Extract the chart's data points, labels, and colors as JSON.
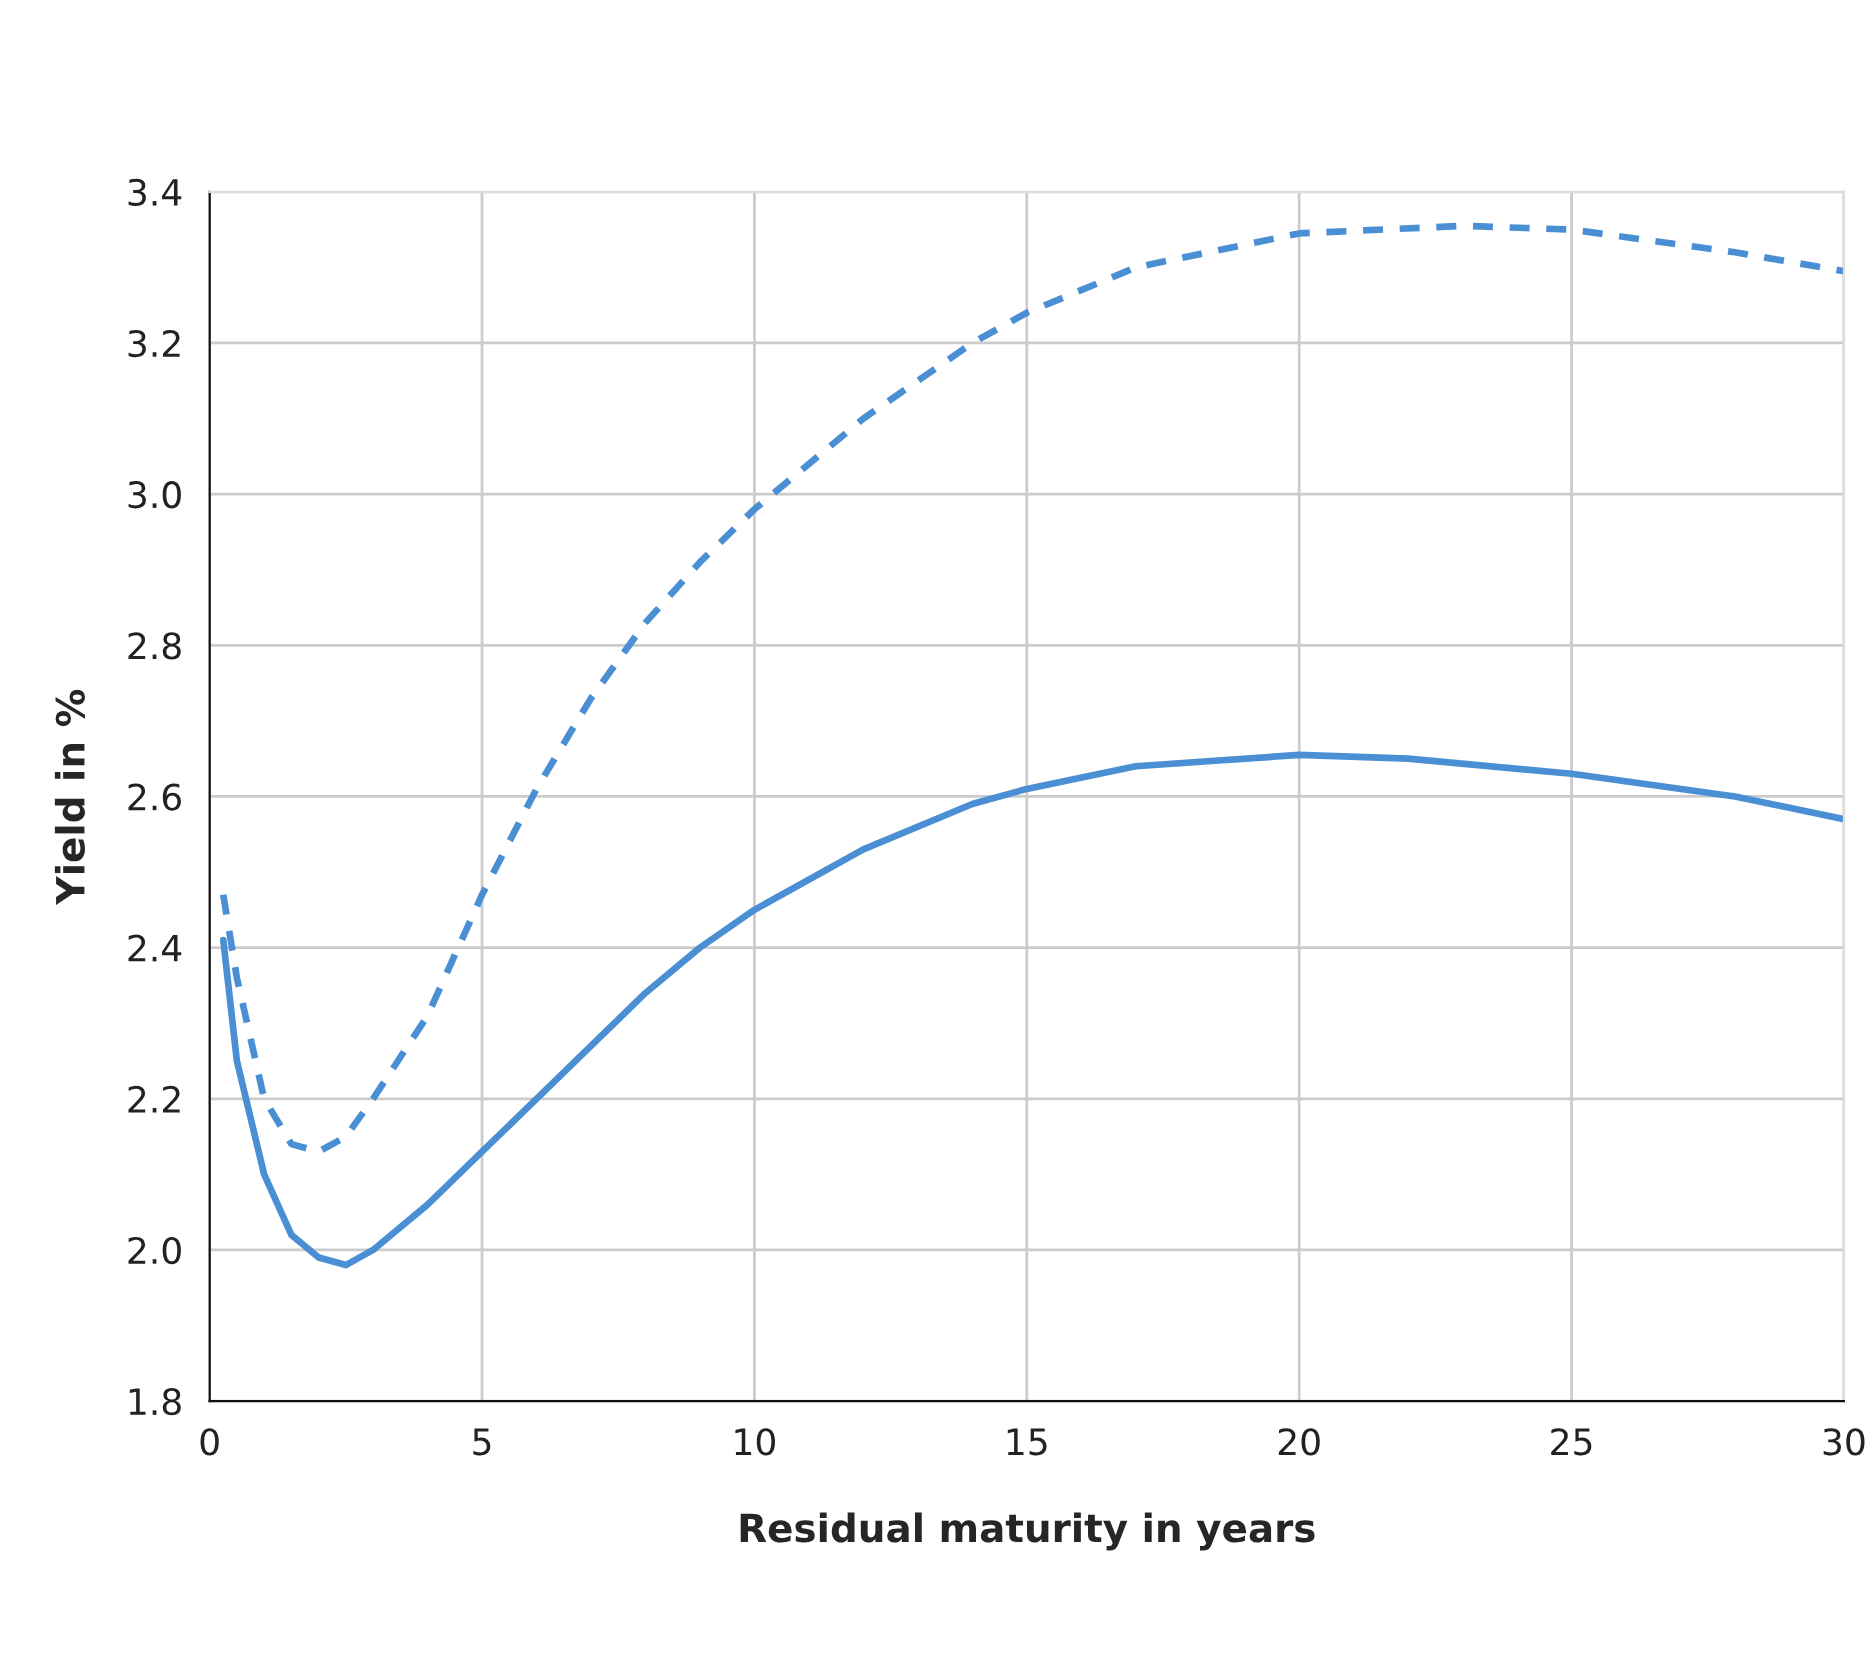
{
  "chart_data": {
    "type": "line",
    "xlabel": "Residual maturity in years",
    "ylabel": "Yield in %",
    "xlim": [
      0,
      30
    ],
    "xticks": [
      0,
      5,
      10,
      15,
      20,
      25,
      30
    ],
    "ylim": [
      1.8,
      3.4
    ],
    "yticks": [
      1.8,
      {
        "value": 2.0,
        "label": "2.0"
      },
      2.2,
      2.4,
      2.6,
      2.8,
      {
        "value": 3.0,
        "label": "3.0"
      },
      3.2,
      3.4
    ],
    "grid": true,
    "legend": false,
    "marker": "none",
    "series": [
      {
        "color": "#4a8fd4",
        "line_style": "solid",
        "x": [
          0.25,
          0.5,
          1,
          1.5,
          2,
          2.5,
          3,
          4,
          5,
          6,
          7,
          8,
          9,
          10,
          12,
          14,
          15,
          17,
          20,
          22,
          25,
          28,
          30
        ],
        "values": [
          2.41,
          2.25,
          2.1,
          2.02,
          1.99,
          1.98,
          2.0,
          2.06,
          2.13,
          2.2,
          2.27,
          2.34,
          2.4,
          2.45,
          2.53,
          2.59,
          2.61,
          2.64,
          2.655,
          2.65,
          2.63,
          2.6,
          2.57
        ]
      },
      {
        "color": "#4a8fd4",
        "line_style": "dashed",
        "x": [
          0.25,
          0.5,
          1,
          1.5,
          2,
          2.5,
          3,
          4,
          5,
          6,
          7,
          8,
          9,
          10,
          12,
          14,
          15,
          17,
          20,
          23,
          25,
          28,
          30
        ],
        "values": [
          2.47,
          2.36,
          2.2,
          2.14,
          2.13,
          2.15,
          2.2,
          2.31,
          2.47,
          2.61,
          2.73,
          2.83,
          2.91,
          2.98,
          3.1,
          3.2,
          3.24,
          3.3,
          3.345,
          3.355,
          3.35,
          3.32,
          3.295
        ]
      }
    ]
  }
}
